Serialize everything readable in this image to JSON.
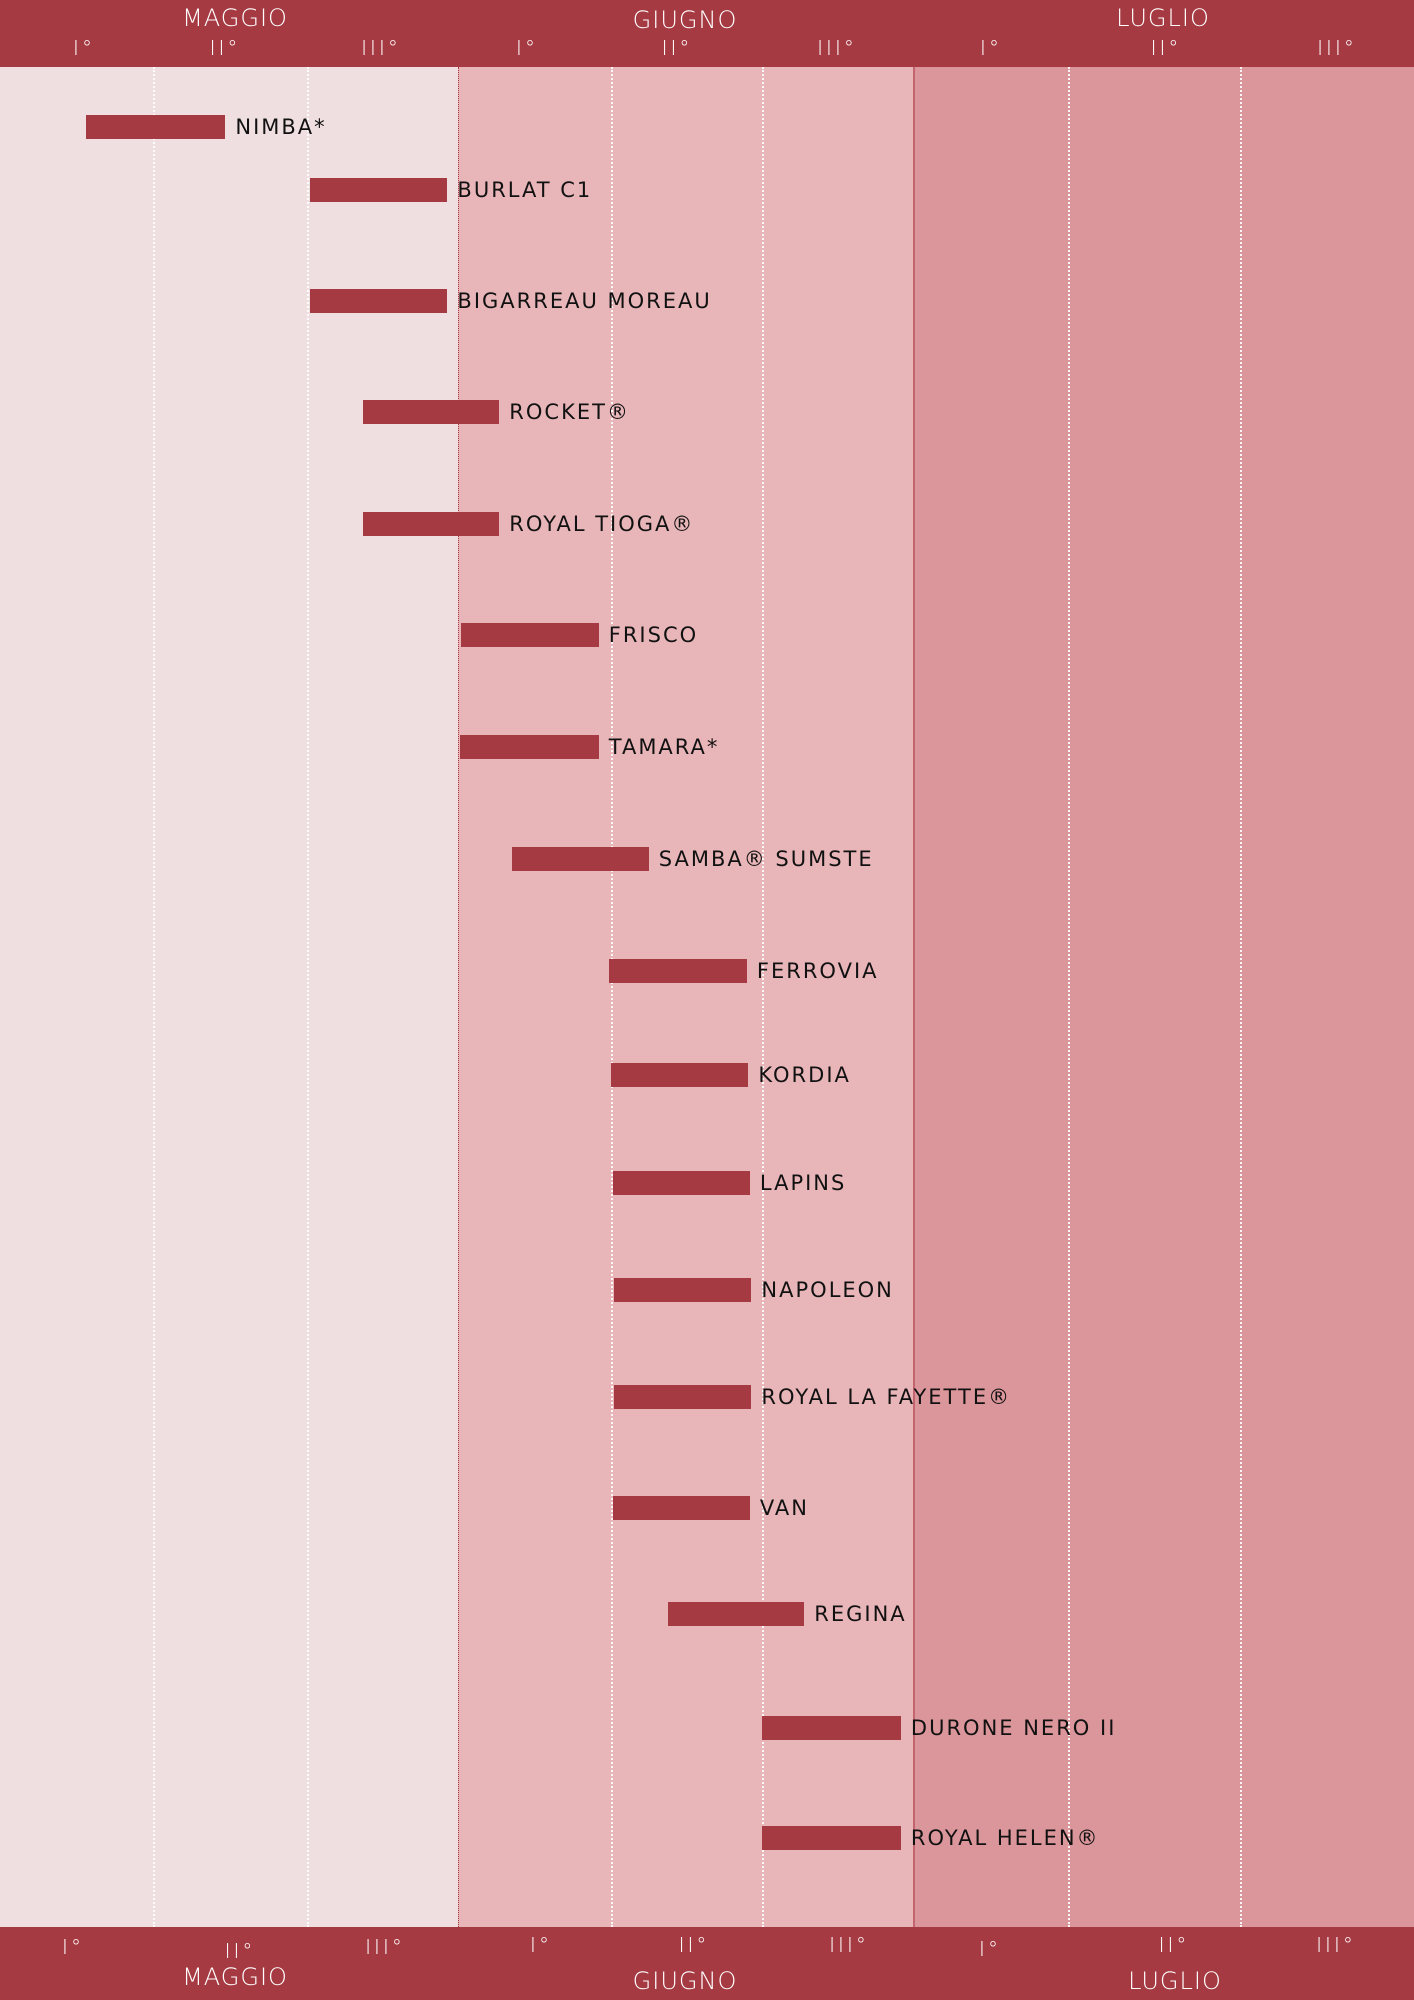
{
  "colors": {
    "header": "#a63a42",
    "bar": "#a63a42",
    "zone_may": "#f0dfe1",
    "zone_june": "#e8b6b9",
    "zone_july": "#db969b"
  },
  "chart_data": {
    "type": "gantt",
    "title": "",
    "months": [
      "MAGGIO",
      "GIUGNO",
      "LUGLIO"
    ],
    "decades": [
      "I°",
      "II°",
      "III°"
    ],
    "x_unit": "decade index from start of MAGGIO (0-9)",
    "varieties": [
      {
        "name": "NIMBA*",
        "start": 0.56,
        "end": 1.47
      },
      {
        "name": "BURLAT C1",
        "start": 2.02,
        "end": 2.93
      },
      {
        "name": "BIGARREAU MOREAU",
        "start": 2.02,
        "end": 2.93
      },
      {
        "name": "ROCKET®",
        "start": 2.37,
        "end": 3.27
      },
      {
        "name": "ROYAL TIOGA®",
        "start": 2.37,
        "end": 3.27
      },
      {
        "name": "FRISCO",
        "start": 3.02,
        "end": 3.92
      },
      {
        "name": "TAMARA*",
        "start": 3.01,
        "end": 3.92
      },
      {
        "name": "SAMBA® SUMSTE",
        "start": 3.35,
        "end": 4.25
      },
      {
        "name": "FERROVIA",
        "start": 3.99,
        "end": 4.9
      },
      {
        "name": "KORDIA",
        "start": 4.0,
        "end": 4.91
      },
      {
        "name": "LAPINS",
        "start": 4.01,
        "end": 4.92
      },
      {
        "name": "NAPOLEON",
        "start": 4.02,
        "end": 4.93
      },
      {
        "name": "ROYAL LA FAYETTE®",
        "start": 4.02,
        "end": 4.93
      },
      {
        "name": "VAN",
        "start": 4.01,
        "end": 4.92
      },
      {
        "name": "REGINA",
        "start": 4.38,
        "end": 5.28
      },
      {
        "name": "DURONE NERO II",
        "start": 5.0,
        "end": 5.92
      },
      {
        "name": "ROYAL HELEN®",
        "start": 5.0,
        "end": 5.92
      }
    ]
  }
}
